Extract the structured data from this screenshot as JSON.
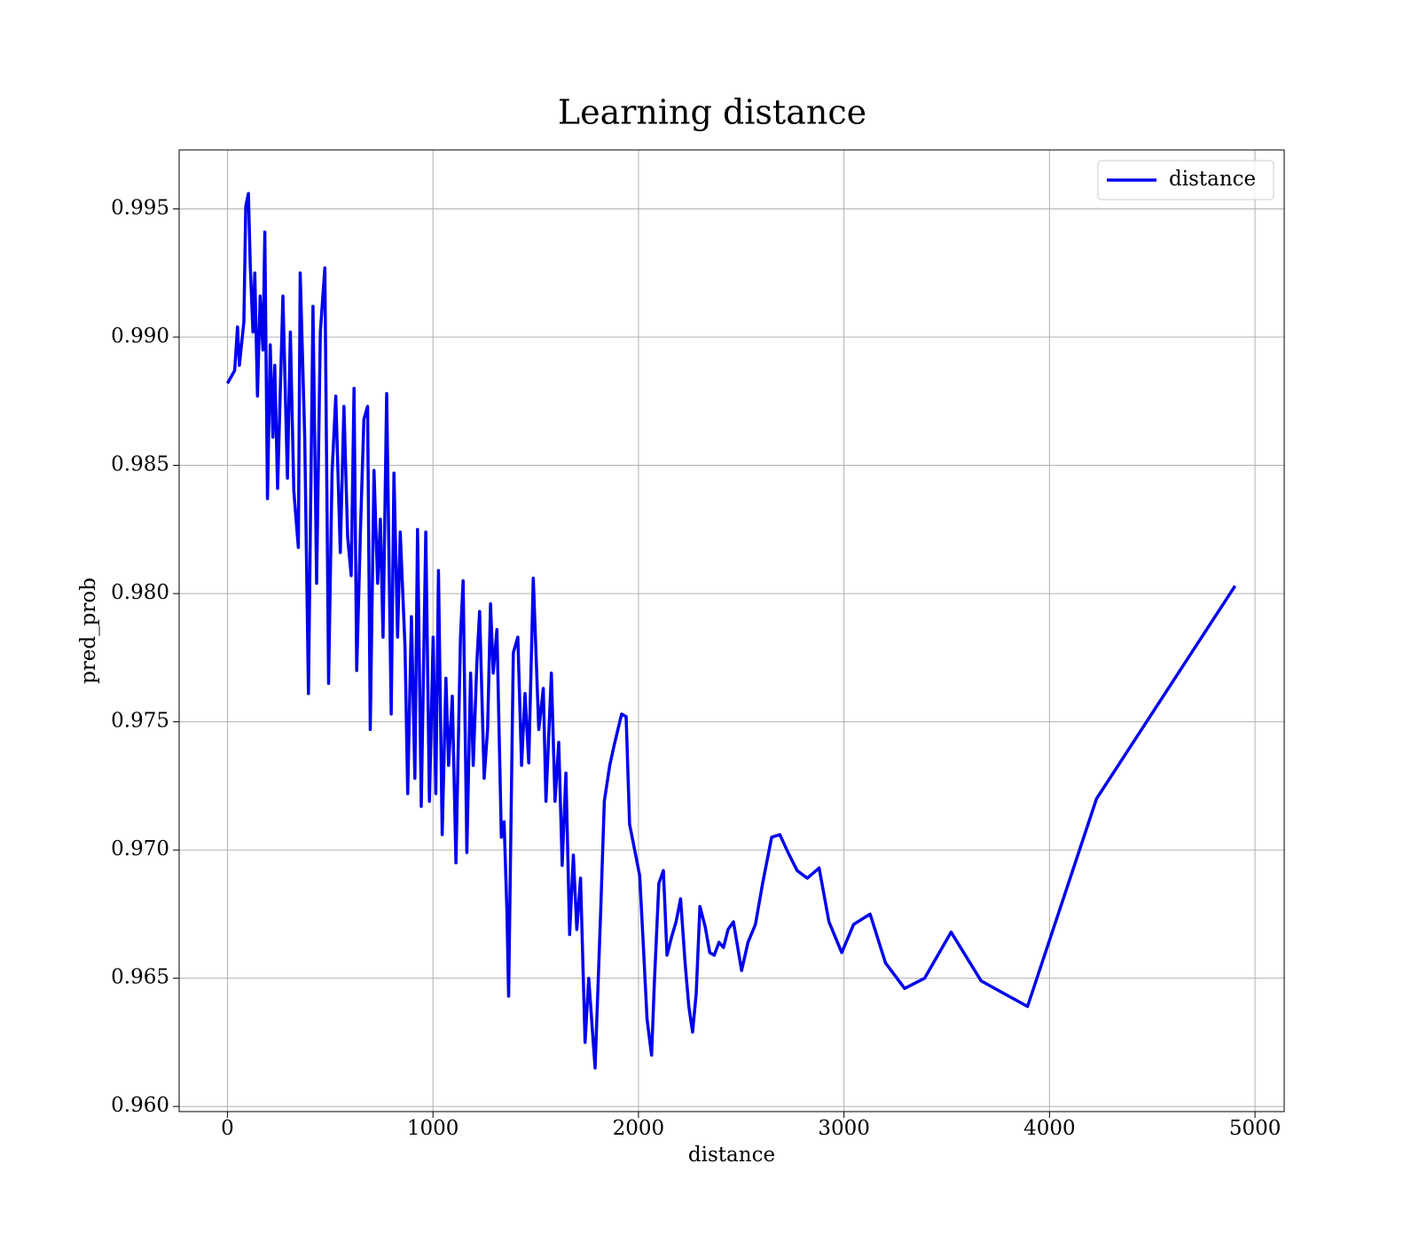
{
  "chart_data": {
    "type": "line",
    "title": "Learning distance",
    "x_label": "distance",
    "y_label": "pred_prob",
    "xlim": [
      -235,
      5142
    ],
    "ylim": [
      0.9598,
      0.9973
    ],
    "xticks": [
      0,
      1000,
      2000,
      3000,
      4000,
      5000
    ],
    "yticks": [
      {
        "value": 0.96,
        "label": "0.960"
      },
      0.965,
      {
        "value": 0.97,
        "label": "0.970"
      },
      0.975,
      {
        "value": 0.98,
        "label": "0.980"
      },
      0.985,
      {
        "value": 0.99,
        "label": "0.990"
      },
      0.995
    ],
    "grid": true,
    "legend": "upper right",
    "x": [
      0,
      35,
      49,
      58,
      80,
      89,
      102,
      111,
      124,
      133,
      146,
      159,
      173,
      182,
      195,
      208,
      221,
      230,
      244,
      270,
      292,
      306,
      323,
      345,
      354,
      376,
      394,
      416,
      434,
      452,
      474,
      492,
      509,
      527,
      549,
      567,
      585,
      602,
      616,
      629,
      647,
      664,
      682,
      695,
      713,
      731,
      744,
      757,
      775,
      797,
      810,
      828,
      841,
      864,
      877,
      895,
      912,
      925,
      943,
      965,
      983,
      1001,
      1014,
      1027,
      1045,
      1063,
      1076,
      1094,
      1112,
      1134,
      1147,
      1165,
      1183,
      1196,
      1214,
      1227,
      1249,
      1266,
      1280,
      1293,
      1311,
      1333,
      1346,
      1360,
      1368,
      1391,
      1413,
      1431,
      1448,
      1466,
      1488,
      1515,
      1537,
      1550,
      1576,
      1594,
      1612,
      1629,
      1647,
      1665,
      1683,
      1700,
      1718,
      1740,
      1758,
      1789,
      1816,
      1834,
      1860,
      1882,
      1918,
      1940,
      1957,
      1984,
      2006,
      2024,
      2042,
      2064,
      2077,
      2099,
      2121,
      2139,
      2161,
      2183,
      2205,
      2228,
      2245,
      2263,
      2281,
      2299,
      2325,
      2347,
      2369,
      2392,
      2414,
      2436,
      2462,
      2502,
      2533,
      2569,
      2604,
      2648,
      2688,
      2728,
      2772,
      2821,
      2879,
      2927,
      2989,
      3047,
      3127,
      3202,
      3295,
      3392,
      3521,
      3667,
      3893,
      4229,
      4903
    ],
    "series": [
      {
        "name": "distance",
        "color": "#0000ee",
        "values": [
          0.9882,
          0.9887,
          0.9904,
          0.9889,
          0.9906,
          0.9951,
          0.9956,
          0.9928,
          0.9902,
          0.9925,
          0.9877,
          0.9916,
          0.9895,
          0.9941,
          0.9837,
          0.9897,
          0.9861,
          0.9889,
          0.9841,
          0.9916,
          0.9845,
          0.9902,
          0.984,
          0.9818,
          0.9925,
          0.9861,
          0.9761,
          0.9912,
          0.9804,
          0.9902,
          0.9927,
          0.9765,
          0.9847,
          0.9877,
          0.9816,
          0.9873,
          0.9822,
          0.9807,
          0.988,
          0.977,
          0.9824,
          0.9868,
          0.9873,
          0.9747,
          0.9848,
          0.9804,
          0.9829,
          0.9783,
          0.9878,
          0.9753,
          0.9847,
          0.9783,
          0.9824,
          0.9779,
          0.9722,
          0.9791,
          0.9728,
          0.9825,
          0.9717,
          0.9824,
          0.9719,
          0.9783,
          0.9722,
          0.9809,
          0.9706,
          0.9767,
          0.9733,
          0.976,
          0.9695,
          0.9783,
          0.9805,
          0.9699,
          0.9769,
          0.9733,
          0.9774,
          0.9793,
          0.9728,
          0.9747,
          0.9796,
          0.9769,
          0.9786,
          0.9705,
          0.9711,
          0.9676,
          0.9643,
          0.9777,
          0.9783,
          0.9733,
          0.9761,
          0.9734,
          0.9806,
          0.9747,
          0.9763,
          0.9719,
          0.9769,
          0.9719,
          0.9742,
          0.9694,
          0.973,
          0.9667,
          0.9698,
          0.9669,
          0.9689,
          0.9625,
          0.965,
          0.9615,
          0.9676,
          0.9719,
          0.9733,
          0.9741,
          0.9753,
          0.9752,
          0.971,
          0.9699,
          0.969,
          0.9662,
          0.9634,
          0.962,
          0.9648,
          0.9687,
          0.9692,
          0.9659,
          0.9666,
          0.9672,
          0.9681,
          0.9655,
          0.9639,
          0.9629,
          0.9644,
          0.9678,
          0.967,
          0.966,
          0.9659,
          0.9664,
          0.9662,
          0.9669,
          0.9672,
          0.9653,
          0.9664,
          0.9671,
          0.9687,
          0.9705,
          0.9706,
          0.9699,
          0.9692,
          0.9689,
          0.9693,
          0.9672,
          0.966,
          0.9671,
          0.9675,
          0.9656,
          0.9646,
          0.965,
          0.9668,
          0.9649,
          0.9639,
          0.972,
          0.9803
        ]
      }
    ]
  }
}
